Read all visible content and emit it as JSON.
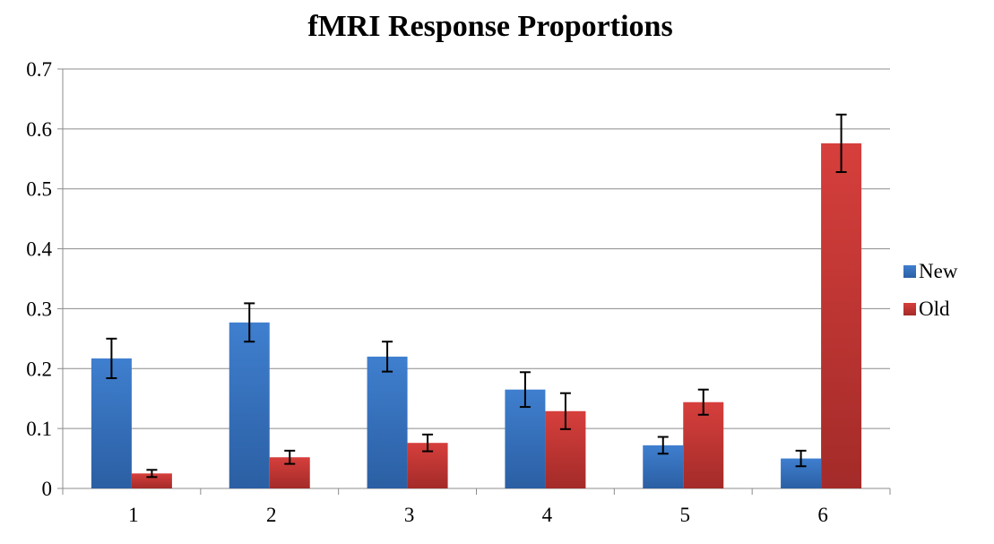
{
  "chart_data": {
    "type": "bar",
    "title": "fMRI Response Proportions",
    "xlabel": "",
    "ylabel": "",
    "categories": [
      "1",
      "2",
      "3",
      "4",
      "5",
      "6"
    ],
    "ylim": [
      0,
      0.7
    ],
    "yticks": [
      "0",
      "0.1",
      "0.2",
      "0.3",
      "0.4",
      "0.5",
      "0.6",
      "0.7"
    ],
    "grid": true,
    "legend": "right",
    "series": [
      {
        "name": "New",
        "color": "#3f7fcf",
        "color_dark": "#2b5fa3",
        "values": [
          0.217,
          0.277,
          0.22,
          0.165,
          0.072,
          0.05
        ],
        "errors": [
          0.033,
          0.032,
          0.025,
          0.029,
          0.014,
          0.013
        ]
      },
      {
        "name": "Old",
        "color": "#d63f3c",
        "color_dark": "#a32b29",
        "values": [
          0.025,
          0.052,
          0.076,
          0.129,
          0.144,
          0.576
        ],
        "errors": [
          0.006,
          0.011,
          0.014,
          0.03,
          0.021,
          0.048
        ]
      }
    ]
  }
}
